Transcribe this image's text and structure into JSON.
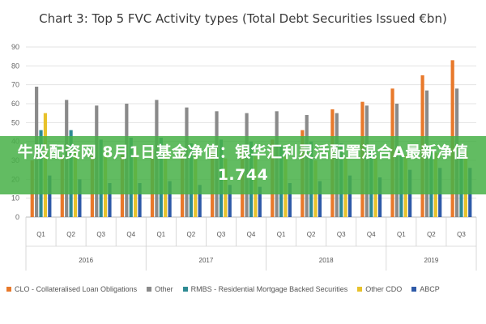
{
  "chart_data": {
    "type": "bar",
    "title": "Chart 3: Top 5 FVC Activity types (Total Debt Securities Issued €bn)",
    "quarters": [
      "Q1",
      "Q2",
      "Q3",
      "Q4",
      "Q1",
      "Q2",
      "Q3",
      "Q4",
      "Q1",
      "Q2",
      "Q3",
      "Q4",
      "Q1",
      "Q2",
      "Q3"
    ],
    "years": [
      "2016",
      "2017",
      "2018",
      "2019"
    ],
    "ylim": [
      0,
      90
    ],
    "yticks": [
      0,
      10,
      20,
      30,
      40,
      50,
      60,
      70,
      80,
      90
    ],
    "grid": true,
    "legend_position": "bottom",
    "series": [
      {
        "name": "CLO - Collateralised Loan Obligations",
        "color": "#e8792b",
        "values": [
          30,
          32,
          33,
          33,
          36,
          35,
          36,
          37,
          41,
          46,
          57,
          61,
          68,
          75,
          83
        ]
      },
      {
        "name": "Other",
        "color": "#8a8a8a",
        "values": [
          69,
          62,
          59,
          60,
          62,
          58,
          56,
          55,
          56,
          54,
          55,
          59,
          60,
          67,
          68
        ]
      },
      {
        "name": "RMBS - Residential Mortgage Backed Securities",
        "color": "#2e8b93",
        "values": [
          46,
          46,
          41,
          42,
          42,
          39,
          41,
          40,
          38,
          40,
          39,
          35,
          33,
          34,
          33
        ]
      },
      {
        "name": "Other CDO",
        "color": "#e8c22b",
        "values": [
          55,
          36,
          35,
          37,
          36,
          33,
          31,
          32,
          32,
          30,
          31,
          32,
          33,
          34,
          35
        ]
      },
      {
        "name": "ABCP",
        "color": "#2f5aa8",
        "values": [
          22,
          20,
          18,
          18,
          19,
          17,
          17,
          16,
          18,
          19,
          22,
          21,
          25,
          26,
          26
        ]
      }
    ]
  },
  "overlay": {
    "text": "牛股配资网 8月1日基金净值：银华汇利灵活配置混合A最新净值1.744"
  }
}
